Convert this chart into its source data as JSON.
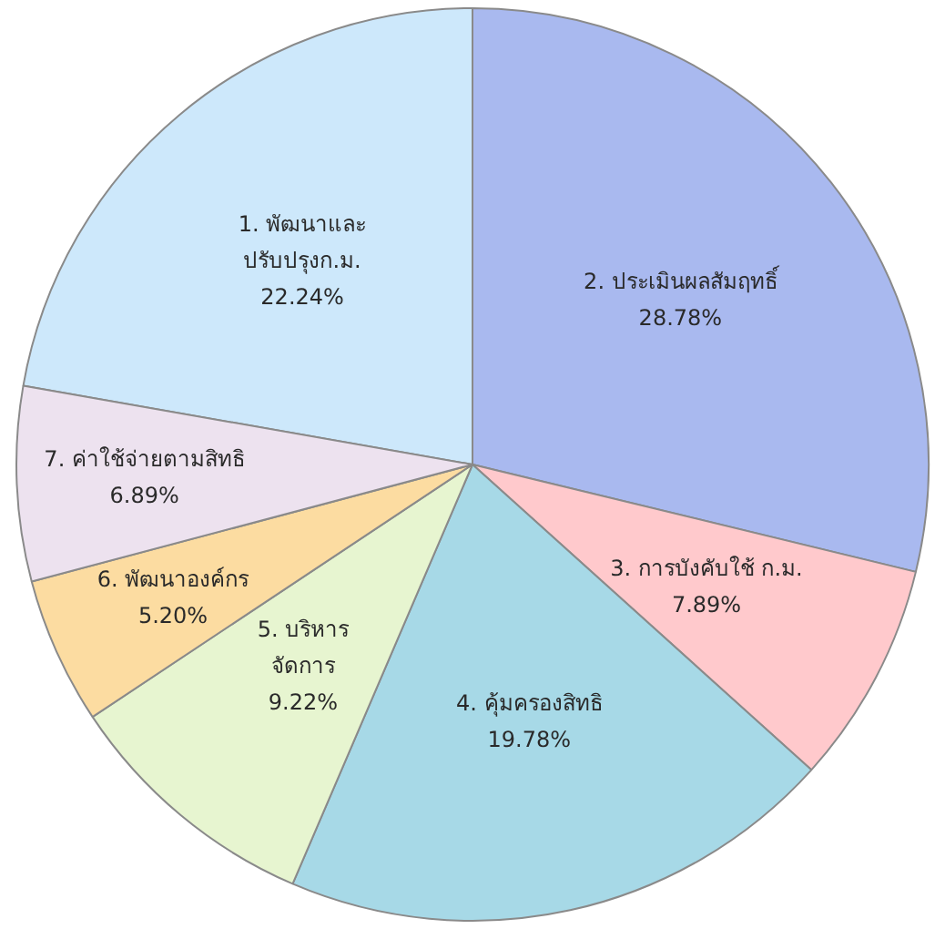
{
  "chart_data": {
    "type": "pie",
    "categories": [
      "1. พัฒนาและ\nปรับปรุงก.ม.",
      "2. ประเมินผลสัมฤทธิ์",
      "3. การบังคับใช้ ก.ม.",
      "4. คุ้มครองสิทธิ",
      "5. บริหาร\nจัดการ",
      "6. พัฒนาองค์กร",
      "7. ค่าใช้จ่ายตามสิทธิ"
    ],
    "values": [
      22.24,
      28.78,
      7.89,
      19.78,
      9.22,
      5.2,
      6.89
    ],
    "value_labels": [
      "22.24%",
      "28.78%",
      "7.89%",
      "19.78%",
      "9.22%",
      "5.20%",
      "6.89%"
    ],
    "colors": [
      "#cde8fb",
      "#a9b9ef",
      "#ffc9cc",
      "#a7d9e7",
      "#e7f5d0",
      "#fcdca1",
      "#ede2ef"
    ],
    "legend": false
  }
}
